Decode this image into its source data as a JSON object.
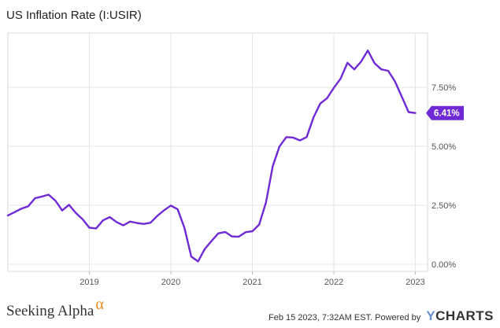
{
  "chart_data": {
    "type": "line",
    "title": "US Inflation Rate (I:USIR)",
    "x_tick_labels": [
      "2019",
      "2020",
      "2021",
      "2022",
      "2023"
    ],
    "y_tick_labels": [
      "0.00%",
      "2.50%",
      "5.00%",
      "7.50%"
    ],
    "ylim": [
      -0.3,
      9.8
    ],
    "xlim": [
      2018.0,
      2023.15
    ],
    "grid": true,
    "line_color": "#6f2ad6",
    "last_value_label": "6.41%",
    "series": [
      {
        "x": [
          2018.0,
          2018.083,
          2018.167,
          2018.25,
          2018.333,
          2018.417,
          2018.5,
          2018.583,
          2018.667,
          2018.75,
          2018.833,
          2018.917,
          2019.0,
          2019.083,
          2019.167,
          2019.25,
          2019.333,
          2019.417,
          2019.5,
          2019.583,
          2019.667,
          2019.75,
          2019.833,
          2019.917,
          2020.0,
          2020.083,
          2020.167,
          2020.25,
          2020.333,
          2020.417,
          2020.5,
          2020.583,
          2020.667,
          2020.75,
          2020.833,
          2020.917,
          2021.0,
          2021.083,
          2021.167,
          2021.25,
          2021.333,
          2021.417,
          2021.5,
          2021.583,
          2021.667,
          2021.75,
          2021.833,
          2021.917,
          2022.0,
          2022.083,
          2022.167,
          2022.25,
          2022.333,
          2022.417,
          2022.5,
          2022.583,
          2022.667,
          2022.75,
          2022.833,
          2022.917,
          2023.0
        ],
        "y": [
          2.07,
          2.21,
          2.36,
          2.46,
          2.8,
          2.87,
          2.95,
          2.7,
          2.28,
          2.52,
          2.18,
          1.91,
          1.55,
          1.52,
          1.86,
          2.0,
          1.79,
          1.65,
          1.81,
          1.75,
          1.71,
          1.76,
          2.05,
          2.29,
          2.49,
          2.33,
          1.54,
          0.33,
          0.12,
          0.65,
          0.99,
          1.31,
          1.37,
          1.18,
          1.17,
          1.36,
          1.4,
          1.68,
          2.62,
          4.16,
          4.99,
          5.39,
          5.37,
          5.25,
          5.39,
          6.22,
          6.81,
          7.04,
          7.48,
          7.87,
          8.54,
          8.26,
          8.58,
          9.06,
          8.52,
          8.26,
          8.2,
          7.75,
          7.11,
          6.45,
          6.41
        ]
      }
    ]
  },
  "footer": {
    "seeking_alpha_text": "Seeking Alpha",
    "alpha_symbol": "α",
    "timestamp": "Feb 15 2023, 7:32AM EST.",
    "powered_by": "Powered by",
    "brand_y": "Y",
    "brand_rest": "CHARTS"
  }
}
